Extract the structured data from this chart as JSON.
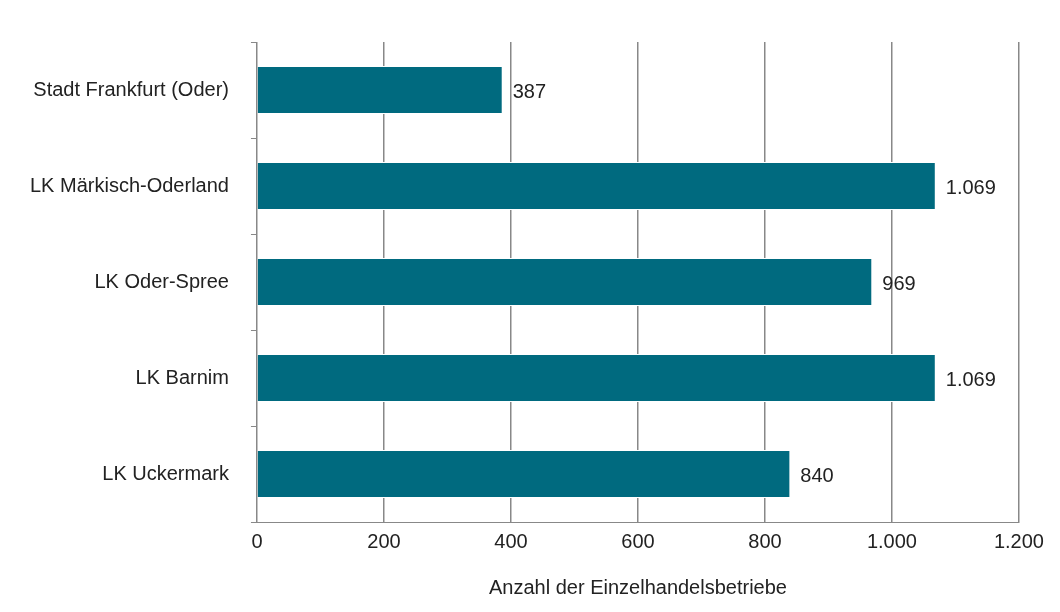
{
  "chart_data": {
    "type": "bar",
    "orientation": "horizontal",
    "xlabel": "Anzahl der Einzelhandelsbetriebe",
    "categories": [
      "Stadt Frankfurt (Oder)",
      "LK Märkisch-Oderland",
      "LK Oder-Spree",
      "LK Barnim",
      "LK Uckermark"
    ],
    "values": [
      387,
      1069,
      969,
      1069,
      840
    ],
    "color": "#006a7f",
    "value_labels": [
      "387",
      "1.069",
      "969",
      "1.069",
      "840"
    ],
    "xlim": [
      0,
      1200
    ],
    "xticks": [
      0,
      200,
      400,
      600,
      800,
      {
        "value": 1000,
        "label": "1.000"
      },
      {
        "value": 1200,
        "label": "1.200"
      }
    ],
    "grid": "x",
    "legend": false
  }
}
